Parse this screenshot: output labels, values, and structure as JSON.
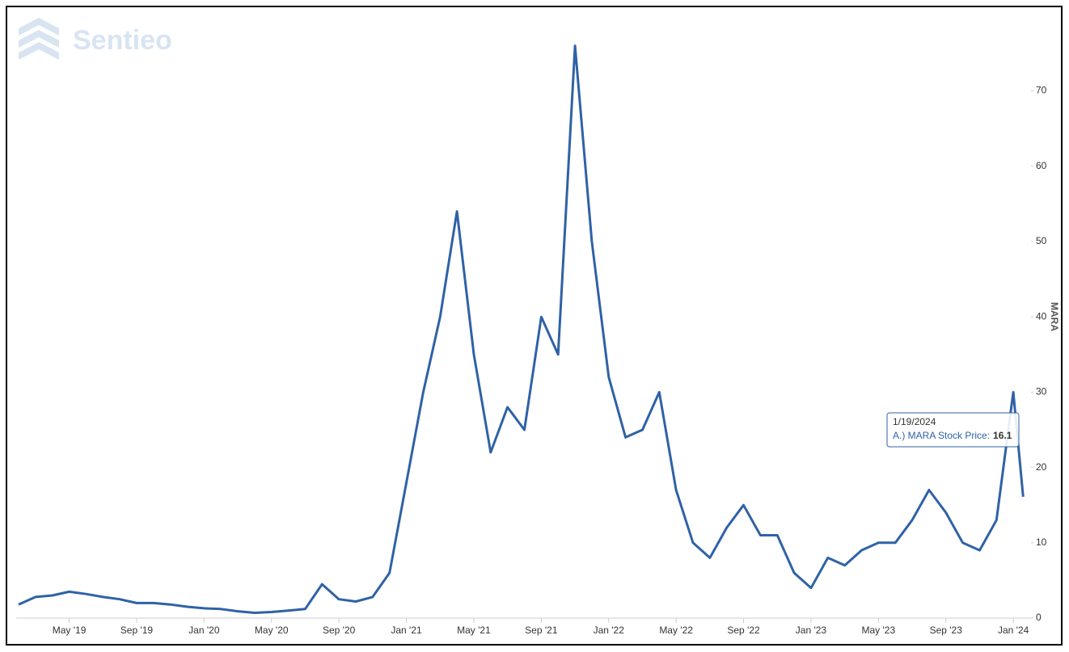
{
  "chart_data": {
    "type": "line",
    "watermark": "Sentieo",
    "y_label": "MARA",
    "color": "#2f62a6",
    "x": [
      "2019-02",
      "2019-03",
      "2019-04",
      "2019-05",
      "2019-06",
      "2019-07",
      "2019-08",
      "2019-09",
      "2019-10",
      "2019-11",
      "2019-12",
      "2020-01",
      "2020-02",
      "2020-03",
      "2020-04",
      "2020-05",
      "2020-06",
      "2020-07",
      "2020-08",
      "2020-09",
      "2020-10",
      "2020-11",
      "2020-12",
      "2021-01",
      "2021-02",
      "2021-03",
      "2021-04",
      "2021-05",
      "2021-06",
      "2021-07",
      "2021-08",
      "2021-09",
      "2021-10",
      "2021-11",
      "2021-12",
      "2022-01",
      "2022-02",
      "2022-03",
      "2022-04",
      "2022-05",
      "2022-06",
      "2022-07",
      "2022-08",
      "2022-09",
      "2022-10",
      "2022-11",
      "2022-12",
      "2023-01",
      "2023-02",
      "2023-03",
      "2023-04",
      "2023-05",
      "2023-06",
      "2023-07",
      "2023-08",
      "2023-09",
      "2023-10",
      "2023-11",
      "2023-12",
      "2024-01",
      "2024-01-19"
    ],
    "values": [
      1.8,
      2.8,
      3.0,
      3.5,
      3.2,
      2.8,
      2.5,
      2.0,
      2.0,
      1.8,
      1.5,
      1.3,
      1.2,
      0.9,
      0.7,
      0.8,
      1.0,
      1.2,
      4.5,
      2.5,
      2.2,
      2.8,
      6.0,
      18,
      30,
      40,
      54,
      35,
      22,
      28,
      25,
      40,
      35,
      76,
      50,
      32,
      24,
      25,
      30,
      17,
      10,
      8,
      12,
      15,
      11,
      11,
      6,
      4,
      8,
      7,
      9,
      10,
      10,
      13,
      17,
      14,
      10,
      9,
      13,
      30,
      16.1
    ],
    "xlim": [
      "2019-02",
      "2024-02"
    ],
    "xticks": [
      {
        "value": "2019-05",
        "label": "May '19"
      },
      {
        "value": "2019-09",
        "label": "Sep '19"
      },
      {
        "value": "2020-01",
        "label": "Jan '20"
      },
      {
        "value": "2020-05",
        "label": "May '20"
      },
      {
        "value": "2020-09",
        "label": "Sep '20"
      },
      {
        "value": "2021-01",
        "label": "Jan '21"
      },
      {
        "value": "2021-05",
        "label": "May '21"
      },
      {
        "value": "2021-09",
        "label": "Sep '21"
      },
      {
        "value": "2022-01",
        "label": "Jan '22"
      },
      {
        "value": "2022-05",
        "label": "May '22"
      },
      {
        "value": "2022-09",
        "label": "Sep '22"
      },
      {
        "value": "2023-01",
        "label": "Jan '23"
      },
      {
        "value": "2023-05",
        "label": "May '23"
      },
      {
        "value": "2023-09",
        "label": "Sep '23"
      },
      {
        "value": "2024-01",
        "label": "Jan '24"
      }
    ],
    "ylim": [
      0,
      81
    ],
    "yticks": [
      0,
      10,
      20,
      30,
      40,
      50,
      60,
      70
    ],
    "tooltip": {
      "date": "1/19/2024",
      "label": "A.) MARA Stock Price:",
      "value": 16.1
    }
  }
}
